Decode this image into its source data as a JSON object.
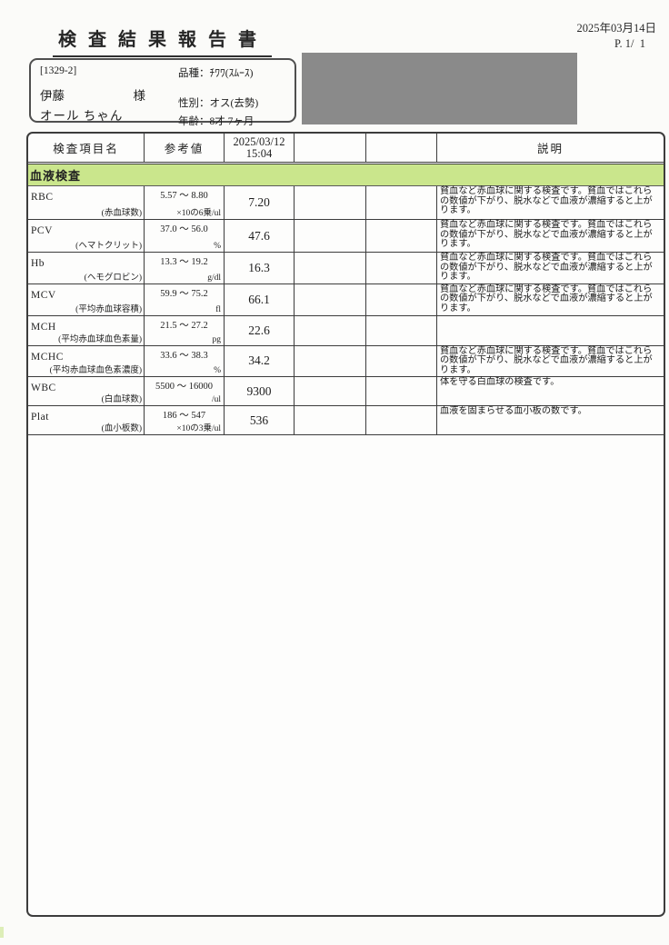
{
  "page": {
    "title": "検査結果報告書",
    "print_date": "2025年03月14日",
    "page_number": "P. 1/  1"
  },
  "patient": {
    "chart_id": "[1329-2]",
    "owner_name": "伊藤",
    "owner_honorific": "様",
    "pet_name": "オール ちゃん",
    "breed": "品種：ﾁﾜﾜ(ｽﾑｰｽ)",
    "sex": "性別：オス(去勢)",
    "age": "年齢：8才 7ヶ月"
  },
  "results_table": {
    "headers": {
      "item": "検査項目名",
      "reference": "参考値",
      "sample_datetime": "2025/03/12\n15:04",
      "col4": "",
      "col5": "",
      "description": "説明"
    },
    "section_title": "血液検査",
    "rows": [
      {
        "name": "RBC",
        "subname": "(赤血球数)",
        "reference": "5.57 ～ 8.80",
        "unit": "×10の6乗/ul",
        "value": "7.20",
        "description": "貧血など赤血球に関する検査です。貧血ではこれらの数値が下がり、脱水などで血液が濃縮すると上がります。"
      },
      {
        "name": "PCV",
        "subname": "(ヘマトクリット)",
        "reference": "37.0 ～ 56.0",
        "unit": "%",
        "value": "47.6",
        "description": "貧血など赤血球に関する検査です。貧血ではこれらの数値が下がり、脱水などで血液が濃縮すると上がります。"
      },
      {
        "name": "Hb",
        "subname": "(ヘモグロビン)",
        "reference": "13.3 ～ 19.2",
        "unit": "g/dl",
        "value": "16.3",
        "description": "貧血など赤血球に関する検査です。貧血ではこれらの数値が下がり、脱水などで血液が濃縮すると上がります。"
      },
      {
        "name": "MCV",
        "subname": "(平均赤血球容積)",
        "reference": "59.9 ～ 75.2",
        "unit": "fl",
        "value": "66.1",
        "description": "貧血など赤血球に関する検査です。貧血ではこれらの数値が下がり、脱水などで血液が濃縮すると上がります。"
      },
      {
        "name": "MCH",
        "subname": "(平均赤血球血色素量)",
        "reference": "21.5 ～ 27.2",
        "unit": "pg",
        "value": "22.6",
        "description": ""
      },
      {
        "name": "MCHC",
        "subname": "(平均赤血球血色素濃度)",
        "reference": "33.6 ～ 38.3",
        "unit": "%",
        "value": "34.2",
        "description": "貧血など赤血球に関する検査です。貧血ではこれらの数値が下がり、脱水などで血液が濃縮すると上がります。"
      },
      {
        "name": "WBC",
        "subname": "(白血球数)",
        "reference": "5500 ～ 16000",
        "unit": "/ul",
        "value": "9300",
        "description": "体を守る白血球の検査です。"
      },
      {
        "name": "Plat",
        "subname": "(血小板数)",
        "reference": "186 ～ 547",
        "unit": "×10の3乗/ul",
        "value": "536",
        "description": "血液を固まらせる血小板の数です。"
      }
    ]
  },
  "colors": {
    "section_green": "#cae68c",
    "redaction_gray": "#8a8a8a",
    "border_dark": "#3c3c3c"
  }
}
